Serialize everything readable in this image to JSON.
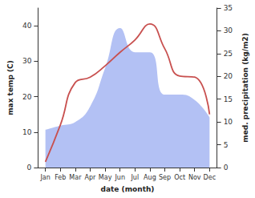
{
  "chart_data": {
    "type": "line",
    "x_label": "date (month)",
    "y_label": "max temp (C)",
    "y2_label": "med. precipitation (kg/m2)",
    "categories": [
      "Jan",
      "Feb",
      "Mar",
      "Apr",
      "May",
      "Jun",
      "Jul",
      "Aug",
      "Sep",
      "Oct",
      "Nov",
      "Dec"
    ],
    "ylim": [
      0,
      45
    ],
    "yticks": [
      0,
      10,
      20,
      30,
      40
    ],
    "y2lim": [
      0,
      35
    ],
    "y2ticks": [
      0,
      5,
      10,
      15,
      20,
      25,
      30,
      35
    ],
    "grid": false,
    "series": [
      {
        "type": "area",
        "axis": "y2",
        "color": "#b3c1f4",
        "line_style": "smooth",
        "values": [
          8.3,
          9.2,
          10,
          13.4,
          21.8,
          30.6,
          25.3,
          25.3,
          16,
          16,
          14.8,
          11
        ]
      },
      {
        "type": "line",
        "color": "#c8504f",
        "line_style": "smooth",
        "values": [
          1.6,
          12,
          24,
          25.5,
          28.7,
          32.5,
          36,
          40.5,
          33.5,
          25.8,
          25.5,
          15
        ]
      }
    ]
  }
}
